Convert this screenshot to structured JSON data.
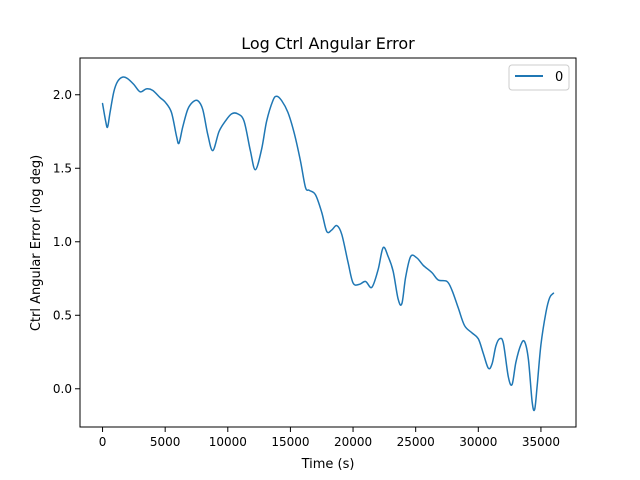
{
  "chart_data": {
    "type": "line",
    "title": "Log Ctrl Angular Error",
    "xlabel": "Time (s)",
    "ylabel": "Ctrl Angular Error (log deg)",
    "xlim": [
      -1800,
      37800
    ],
    "ylim": [
      -0.26,
      2.25
    ],
    "xticks": [
      0,
      5000,
      10000,
      15000,
      20000,
      25000,
      30000,
      35000
    ],
    "yticks": [
      0.0,
      0.5,
      1.0,
      1.5,
      2.0
    ],
    "xtick_labels": [
      "0",
      "5000",
      "10000",
      "15000",
      "20000",
      "25000",
      "30000",
      "35000"
    ],
    "ytick_labels": [
      "0.0",
      "0.5",
      "1.0",
      "1.5",
      "2.0"
    ],
    "grid": false,
    "legend": {
      "position": "top-right"
    },
    "series": [
      {
        "name": "0",
        "color": "#1f77b4",
        "points": [
          [
            0,
            1.94
          ],
          [
            250,
            1.82
          ],
          [
            400,
            1.78
          ],
          [
            600,
            1.88
          ],
          [
            900,
            2.02
          ],
          [
            1200,
            2.09
          ],
          [
            1600,
            2.12
          ],
          [
            2000,
            2.11
          ],
          [
            2500,
            2.07
          ],
          [
            3000,
            2.02
          ],
          [
            3500,
            2.04
          ],
          [
            4000,
            2.03
          ],
          [
            4600,
            1.98
          ],
          [
            5000,
            1.95
          ],
          [
            5500,
            1.88
          ],
          [
            5900,
            1.72
          ],
          [
            6100,
            1.67
          ],
          [
            6400,
            1.78
          ],
          [
            6800,
            1.9
          ],
          [
            7200,
            1.95
          ],
          [
            7600,
            1.96
          ],
          [
            8000,
            1.9
          ],
          [
            8400,
            1.73
          ],
          [
            8800,
            1.62
          ],
          [
            9300,
            1.75
          ],
          [
            9800,
            1.82
          ],
          [
            10300,
            1.87
          ],
          [
            10800,
            1.87
          ],
          [
            11300,
            1.82
          ],
          [
            11800,
            1.62
          ],
          [
            12200,
            1.49
          ],
          [
            12700,
            1.63
          ],
          [
            13100,
            1.82
          ],
          [
            13600,
            1.96
          ],
          [
            13900,
            1.99
          ],
          [
            14300,
            1.96
          ],
          [
            14800,
            1.88
          ],
          [
            15300,
            1.74
          ],
          [
            15800,
            1.55
          ],
          [
            16200,
            1.37
          ],
          [
            16500,
            1.35
          ],
          [
            17000,
            1.32
          ],
          [
            17500,
            1.2
          ],
          [
            17900,
            1.07
          ],
          [
            18300,
            1.08
          ],
          [
            18700,
            1.11
          ],
          [
            19100,
            1.05
          ],
          [
            19600,
            0.86
          ],
          [
            20000,
            0.72
          ],
          [
            20500,
            0.71
          ],
          [
            21000,
            0.73
          ],
          [
            21500,
            0.69
          ],
          [
            22000,
            0.81
          ],
          [
            22400,
            0.96
          ],
          [
            22800,
            0.9
          ],
          [
            23200,
            0.8
          ],
          [
            23600,
            0.61
          ],
          [
            23900,
            0.58
          ],
          [
            24200,
            0.76
          ],
          [
            24600,
            0.9
          ],
          [
            25100,
            0.89
          ],
          [
            25600,
            0.84
          ],
          [
            26300,
            0.79
          ],
          [
            26800,
            0.74
          ],
          [
            27500,
            0.73
          ],
          [
            27900,
            0.67
          ],
          [
            28400,
            0.55
          ],
          [
            28900,
            0.43
          ],
          [
            29500,
            0.38
          ],
          [
            30000,
            0.34
          ],
          [
            30400,
            0.24
          ],
          [
            30800,
            0.14
          ],
          [
            31100,
            0.17
          ],
          [
            31400,
            0.29
          ],
          [
            31700,
            0.34
          ],
          [
            32000,
            0.31
          ],
          [
            32400,
            0.08
          ],
          [
            32700,
            0.03
          ],
          [
            33000,
            0.18
          ],
          [
            33400,
            0.3
          ],
          [
            33700,
            0.32
          ],
          [
            34000,
            0.2
          ],
          [
            34300,
            -0.09
          ],
          [
            34500,
            -0.14
          ],
          [
            34700,
            0.02
          ],
          [
            35000,
            0.3
          ],
          [
            35400,
            0.52
          ],
          [
            35700,
            0.62
          ],
          [
            36000,
            0.65
          ]
        ]
      }
    ]
  }
}
